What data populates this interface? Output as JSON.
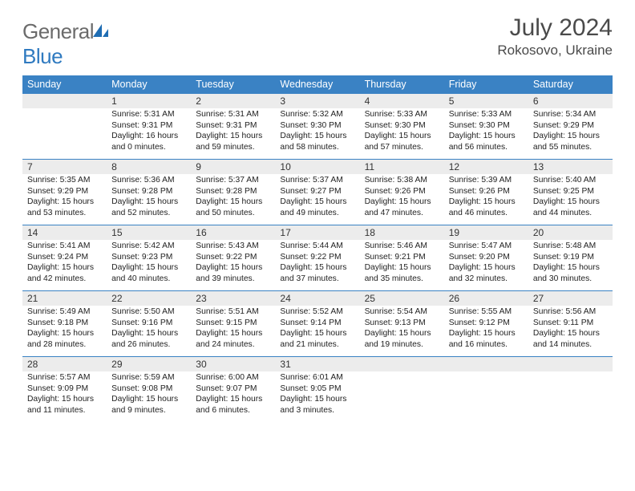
{
  "brand": {
    "part1": "General",
    "part2": "Blue"
  },
  "title": "July 2024",
  "location": "Rokosovo, Ukraine",
  "colors": {
    "header_bg": "#3a82c4",
    "header_text": "#ffffff",
    "daynum_bg": "#ececec",
    "border": "#3a82c4",
    "text": "#222222",
    "title_text": "#4a4a4a",
    "logo_gray": "#6b6b6b",
    "logo_blue": "#2f7ac0"
  },
  "day_names": [
    "Sunday",
    "Monday",
    "Tuesday",
    "Wednesday",
    "Thursday",
    "Friday",
    "Saturday"
  ],
  "weeks": [
    {
      "nums": [
        "",
        "1",
        "2",
        "3",
        "4",
        "5",
        "6"
      ],
      "details": [
        "",
        "Sunrise: 5:31 AM\nSunset: 9:31 PM\nDaylight: 16 hours and 0 minutes.",
        "Sunrise: 5:31 AM\nSunset: 9:31 PM\nDaylight: 15 hours and 59 minutes.",
        "Sunrise: 5:32 AM\nSunset: 9:30 PM\nDaylight: 15 hours and 58 minutes.",
        "Sunrise: 5:33 AM\nSunset: 9:30 PM\nDaylight: 15 hours and 57 minutes.",
        "Sunrise: 5:33 AM\nSunset: 9:30 PM\nDaylight: 15 hours and 56 minutes.",
        "Sunrise: 5:34 AM\nSunset: 9:29 PM\nDaylight: 15 hours and 55 minutes."
      ]
    },
    {
      "nums": [
        "7",
        "8",
        "9",
        "10",
        "11",
        "12",
        "13"
      ],
      "details": [
        "Sunrise: 5:35 AM\nSunset: 9:29 PM\nDaylight: 15 hours and 53 minutes.",
        "Sunrise: 5:36 AM\nSunset: 9:28 PM\nDaylight: 15 hours and 52 minutes.",
        "Sunrise: 5:37 AM\nSunset: 9:28 PM\nDaylight: 15 hours and 50 minutes.",
        "Sunrise: 5:37 AM\nSunset: 9:27 PM\nDaylight: 15 hours and 49 minutes.",
        "Sunrise: 5:38 AM\nSunset: 9:26 PM\nDaylight: 15 hours and 47 minutes.",
        "Sunrise: 5:39 AM\nSunset: 9:26 PM\nDaylight: 15 hours and 46 minutes.",
        "Sunrise: 5:40 AM\nSunset: 9:25 PM\nDaylight: 15 hours and 44 minutes."
      ]
    },
    {
      "nums": [
        "14",
        "15",
        "16",
        "17",
        "18",
        "19",
        "20"
      ],
      "details": [
        "Sunrise: 5:41 AM\nSunset: 9:24 PM\nDaylight: 15 hours and 42 minutes.",
        "Sunrise: 5:42 AM\nSunset: 9:23 PM\nDaylight: 15 hours and 40 minutes.",
        "Sunrise: 5:43 AM\nSunset: 9:22 PM\nDaylight: 15 hours and 39 minutes.",
        "Sunrise: 5:44 AM\nSunset: 9:22 PM\nDaylight: 15 hours and 37 minutes.",
        "Sunrise: 5:46 AM\nSunset: 9:21 PM\nDaylight: 15 hours and 35 minutes.",
        "Sunrise: 5:47 AM\nSunset: 9:20 PM\nDaylight: 15 hours and 32 minutes.",
        "Sunrise: 5:48 AM\nSunset: 9:19 PM\nDaylight: 15 hours and 30 minutes."
      ]
    },
    {
      "nums": [
        "21",
        "22",
        "23",
        "24",
        "25",
        "26",
        "27"
      ],
      "details": [
        "Sunrise: 5:49 AM\nSunset: 9:18 PM\nDaylight: 15 hours and 28 minutes.",
        "Sunrise: 5:50 AM\nSunset: 9:16 PM\nDaylight: 15 hours and 26 minutes.",
        "Sunrise: 5:51 AM\nSunset: 9:15 PM\nDaylight: 15 hours and 24 minutes.",
        "Sunrise: 5:52 AM\nSunset: 9:14 PM\nDaylight: 15 hours and 21 minutes.",
        "Sunrise: 5:54 AM\nSunset: 9:13 PM\nDaylight: 15 hours and 19 minutes.",
        "Sunrise: 5:55 AM\nSunset: 9:12 PM\nDaylight: 15 hours and 16 minutes.",
        "Sunrise: 5:56 AM\nSunset: 9:11 PM\nDaylight: 15 hours and 14 minutes."
      ]
    },
    {
      "nums": [
        "28",
        "29",
        "30",
        "31",
        "",
        "",
        ""
      ],
      "details": [
        "Sunrise: 5:57 AM\nSunset: 9:09 PM\nDaylight: 15 hours and 11 minutes.",
        "Sunrise: 5:59 AM\nSunset: 9:08 PM\nDaylight: 15 hours and 9 minutes.",
        "Sunrise: 6:00 AM\nSunset: 9:07 PM\nDaylight: 15 hours and 6 minutes.",
        "Sunrise: 6:01 AM\nSunset: 9:05 PM\nDaylight: 15 hours and 3 minutes.",
        "",
        "",
        ""
      ]
    }
  ]
}
